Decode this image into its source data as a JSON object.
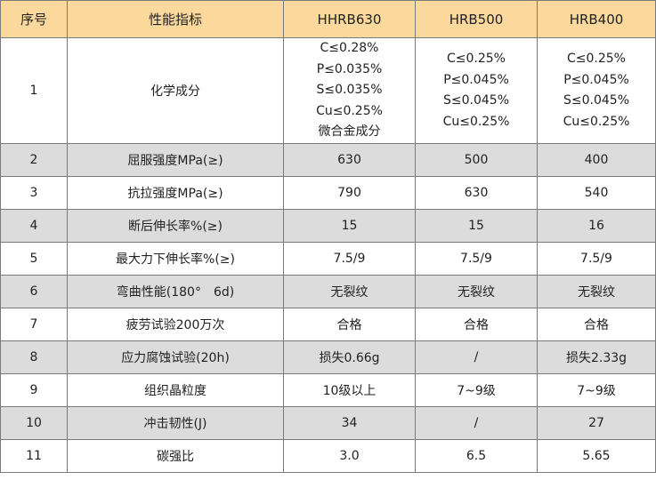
{
  "header": [
    "序号",
    "性能指标",
    "HHRB630",
    "HRB500",
    "HRB400"
  ],
  "colors": {
    "header_bg": "#fbd89c",
    "alt_row_bg": "#dcdcdc",
    "border": "#7a7a7a"
  },
  "row1": {
    "no": "1",
    "name": "化学成分",
    "hhrb630": [
      "C≤0.28%",
      "P≤0.035%",
      "S≤0.035%",
      "Cu≤0.25%",
      "微合金成分"
    ],
    "hrb500": [
      "C≤0.25%",
      "P≤0.045%",
      "S≤0.045%",
      "Cu≤0.25%"
    ],
    "hrb400": [
      "C≤0.25%",
      "P≤0.045%",
      "S≤0.045%",
      "Cu≤0.25%"
    ]
  },
  "rows": [
    [
      "2",
      "屈服强度MPa(≥)",
      "630",
      "500",
      "400"
    ],
    [
      "3",
      "抗拉强度MPa(≥)",
      "790",
      "630",
      "540"
    ],
    [
      "4",
      "断后伸长率%(≥)",
      "15",
      "15",
      "16"
    ],
    [
      "5",
      "最大力下伸长率%(≥)",
      "7.5/9",
      "7.5/9",
      "7.5/9"
    ],
    [
      "6",
      "弯曲性能(180°　6d)",
      "无裂纹",
      "无裂纹",
      "无裂纹"
    ],
    [
      "7",
      "疲劳试验200万次",
      "合格",
      "合格",
      "合格"
    ],
    [
      "8",
      "应力腐蚀试验(20h)",
      "损失0.66g",
      "/",
      "损失2.33g"
    ],
    [
      "9",
      "组织晶粒度",
      "10级以上",
      "7~9级",
      "7~9级"
    ],
    [
      "10",
      "冲击韧性(J)",
      "34",
      "/",
      "27"
    ],
    [
      "11",
      "碳强比",
      "3.0",
      "6.5",
      "5.65"
    ]
  ]
}
